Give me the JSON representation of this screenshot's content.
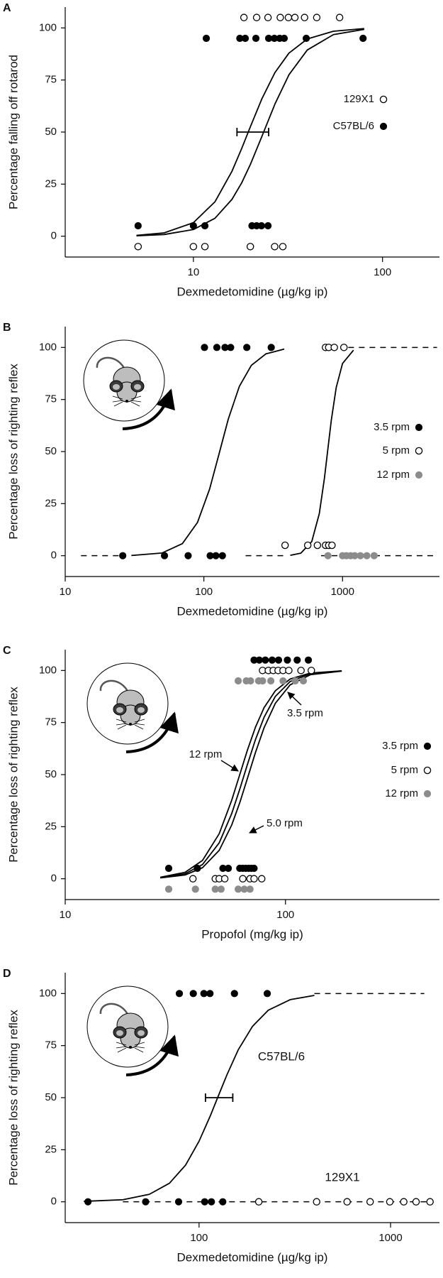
{
  "chart_data": [
    {
      "type": "scatter",
      "panel_label": "A",
      "xlabel": "Dexmedetomidine (µg/kg ip)",
      "ylabel": "Percentage falling off rotarod",
      "xscale": "log",
      "xlim": [
        2.1,
        200
      ],
      "ylim": [
        -10,
        110
      ],
      "xticks": [
        10,
        100
      ],
      "yticks": [
        0,
        25,
        50,
        75,
        100
      ],
      "legend": "right",
      "series": [
        {
          "name": "129X1",
          "marker": "open",
          "color": "#000000",
          "x": [
            18.5,
            21.6,
            24.8,
            28.8,
            31.8,
            34.4,
            38.7,
            44.9,
            59.3,
            5.1,
            10,
            11.5,
            20,
            26.9,
            29.7
          ],
          "values": [
            105,
            105,
            105,
            105,
            105,
            105,
            105,
            105,
            105,
            -5,
            -5,
            -5,
            -5,
            -5,
            -5
          ]
        },
        {
          "name": "C57BL/6",
          "marker": "filled",
          "color": "#000000",
          "x": [
            11.7,
            17.6,
            18.8,
            21.4,
            25.0,
            26.8,
            28.6,
            30.2,
            39.5,
            78.9,
            5.1,
            10,
            11.5,
            20.4,
            21.6,
            22.9,
            24.8
          ],
          "values": [
            95,
            95,
            95,
            95,
            95,
            95,
            95,
            95,
            95,
            95,
            5,
            5,
            5,
            5,
            5,
            5,
            5
          ]
        }
      ],
      "curves": [
        {
          "x": [
            5,
            7,
            10,
            13,
            16,
            18,
            20,
            23,
            27,
            32,
            40,
            55,
            80
          ],
          "values": [
            0.4,
            1.6,
            6.5,
            16.5,
            31.2,
            42.1,
            52.5,
            65.9,
            78.6,
            87.9,
            94.7,
            98.4,
            99.7
          ]
        },
        {
          "x": [
            5,
            7,
            10,
            13,
            16,
            18,
            20,
            23,
            27,
            32,
            40,
            55,
            80
          ],
          "values": [
            0.2,
            0.8,
            3.2,
            8.6,
            17.7,
            25.6,
            34.4,
            47.8,
            63.5,
            77.5,
            89.4,
            96.8,
            99.3
          ]
        }
      ],
      "error_bars": [
        {
          "value": 50,
          "xrange": [
            17,
            25
          ]
        }
      ]
    },
    {
      "type": "scatter",
      "panel_label": "B",
      "xlabel": "Dexmedetomidine (µg/kg ip)",
      "ylabel": "Percentage loss of righting reflex",
      "xscale": "log",
      "xlim": [
        10,
        5000
      ],
      "ylim": [
        -10,
        110
      ],
      "xticks": [
        10,
        100,
        1000
      ],
      "yticks": [
        0,
        25,
        50,
        75,
        100
      ],
      "legend": "right",
      "series": [
        {
          "name": "3.5 rpm",
          "marker": "filled",
          "color": "#000000",
          "x": [
            101,
            124,
            142,
            156,
            204,
            306,
            26,
            52,
            77,
            111,
            122,
            136
          ],
          "values": [
            100,
            100,
            100,
            100,
            100,
            100,
            0,
            0,
            0,
            0,
            0,
            0
          ]
        },
        {
          "name": "5 rpm",
          "marker": "open",
          "color": "#000000",
          "x": [
            754,
            795,
            872,
            1023,
            385,
            561,
            659,
            754,
            795,
            839
          ],
          "values": [
            100,
            100,
            100,
            100,
            5,
            5,
            5,
            5,
            5,
            5
          ]
        },
        {
          "name": "12 rpm",
          "marker": "filled",
          "color": "#8c8c8c",
          "x": [
            785,
            1000,
            1066,
            1143,
            1224,
            1346,
            1497,
            1690
          ],
          "values": [
            0,
            0,
            0,
            0,
            0,
            0,
            0,
            0
          ]
        }
      ],
      "curves": [
        {
          "x": [
            30,
            50,
            70,
            90,
            110,
            130,
            150,
            180,
            220,
            280,
            380
          ],
          "values": [
            0.1,
            1.3,
            5.8,
            16.0,
            32.0,
            50,
            65.6,
            81.2,
            91.4,
            96.9,
            99.2
          ]
        },
        {
          "x": [
            420,
            500,
            600,
            680,
            740,
            780,
            830,
            900,
            1000,
            1200
          ],
          "values": [
            0.2,
            1.2,
            6.8,
            20.2,
            37.1,
            50,
            65.1,
            80.7,
            92.3,
            98.7
          ]
        }
      ],
      "dashed_lines": [
        {
          "value": 0,
          "xrange": [
            13,
            25
          ]
        },
        {
          "value": 0,
          "xrange": [
            200,
            390
          ]
        },
        {
          "value": 0,
          "xrange": [
            700,
            4800
          ]
        },
        {
          "value": 100,
          "xrange": [
            1100,
            4800
          ]
        }
      ]
    },
    {
      "type": "scatter",
      "panel_label": "C",
      "xlabel": "Propofol (mg/kg ip)",
      "ylabel": "Percentage loss of righting reflex",
      "xscale": "log",
      "xlim": [
        10,
        500
      ],
      "ylim": [
        -10,
        110
      ],
      "xticks": [
        10,
        100
      ],
      "yticks": [
        0,
        25,
        50,
        75,
        100
      ],
      "legend": "right",
      "series": [
        {
          "name": "3.5 rpm",
          "marker": "filled",
          "color": "#000000",
          "x": [
            72,
            76,
            81,
            87,
            93,
            102,
            113,
            127,
            29.5,
            39.8,
            52,
            55,
            62,
            64,
            66,
            68,
            70,
            72
          ],
          "values": [
            105,
            105,
            105,
            105,
            105,
            105,
            105,
            105,
            5,
            5,
            5,
            5,
            5,
            5,
            5,
            5,
            5,
            5
          ]
        },
        {
          "name": "5 rpm",
          "marker": "open",
          "color": "#000000",
          "x": [
            78.7,
            83.6,
            88,
            92.6,
            97.5,
            103.5,
            117.6,
            131,
            38,
            48,
            50,
            53,
            64,
            69,
            72,
            78
          ],
          "values": [
            100,
            100,
            100,
            100,
            100,
            100,
            100,
            100,
            0,
            0,
            0,
            0,
            0,
            0,
            0,
            0
          ]
        },
        {
          "name": "12 rpm",
          "marker": "filled",
          "color": "#8c8c8c",
          "x": [
            61,
            66.4,
            69.4,
            75.5,
            78.7,
            85.8,
            97.5,
            110.7,
            120.5,
            29.5,
            39,
            48,
            51,
            61,
            65,
            69
          ],
          "values": [
            95,
            95,
            95,
            95,
            95,
            95,
            95,
            95,
            95,
            -5,
            -5,
            -5,
            -5,
            -5,
            -5,
            -5
          ]
        }
      ],
      "curves": [
        {
          "x": [
            27,
            35,
            42,
            50,
            57,
            62,
            67,
            73,
            80,
            90,
            105,
            130,
            180
          ],
          "values": [
            0.7,
            3.1,
            8.8,
            21.6,
            37.7,
            50,
            61.4,
            72.7,
            82.2,
            90.3,
            95.9,
            98.8,
            99.8
          ]
        },
        {
          "x": [
            27,
            35,
            42,
            50,
            57,
            62,
            67,
            73,
            80,
            90,
            105,
            130,
            180
          ],
          "values": [
            0.5,
            2.4,
            6.8,
            17.2,
            31.3,
            43.0,
            54.5,
            66.7,
            77.6,
            87.6,
            94.7,
            98.5,
            99.8
          ]
        },
        {
          "x": [
            27,
            35,
            42,
            50,
            57,
            62,
            67,
            73,
            80,
            90,
            105,
            130,
            180
          ],
          "values": [
            0.4,
            1.8,
            5.3,
            13.6,
            25.8,
            36.5,
            47.8,
            60.5,
            72.6,
            84.3,
            93.1,
            98.0,
            99.7
          ]
        }
      ],
      "annotations": [
        {
          "text": "3.5 rpm"
        },
        {
          "text": "12 rpm"
        },
        {
          "text": "5.0 rpm"
        }
      ]
    },
    {
      "type": "scatter",
      "panel_label": "D",
      "xlabel": "Dexmedetomidine (µg/kg ip)",
      "ylabel": "Percentage loss of righting reflex",
      "xscale": "log",
      "xlim": [
        20,
        1800
      ],
      "ylim": [
        -10,
        110
      ],
      "xticks": [
        100,
        1000
      ],
      "yticks": [
        0,
        25,
        50,
        75,
        100
      ],
      "legend": false,
      "series": [
        {
          "name": "C57BL/6",
          "marker": "filled",
          "color": "#000000",
          "x": [
            78.9,
            93.3,
            106,
            114,
            153,
            227,
            26.3,
            52.6,
            78.2,
            107,
            116,
            133
          ],
          "values": [
            100,
            100,
            100,
            100,
            100,
            100,
            0,
            0,
            0,
            0,
            0,
            0
          ]
        },
        {
          "name": "129X1",
          "marker": "open",
          "color": "#000000",
          "x": [
            205,
            411,
            593,
            782,
            991,
            1172,
            1359,
            1607
          ],
          "values": [
            0,
            0,
            0,
            0,
            0,
            0,
            0,
            0
          ]
        }
      ],
      "curves": [
        {
          "x": [
            25,
            40,
            55,
            70,
            85,
            100,
            115,
            125,
            140,
            160,
            190,
            230,
            300,
            400
          ],
          "values": [
            0.2,
            1.0,
            3.6,
            8.9,
            17.6,
            29.1,
            41.7,
            50,
            61.1,
            72.9,
            84.2,
            92.0,
            97.1,
            99.1
          ]
        }
      ],
      "dashed_lines": [
        {
          "value": 0,
          "xrange": [
            40,
            1600
          ]
        },
        {
          "value": 100,
          "xrange": [
            400,
            1500
          ]
        }
      ],
      "error_bars": [
        {
          "value": 50,
          "xrange": [
            108,
            150
          ]
        }
      ]
    }
  ]
}
